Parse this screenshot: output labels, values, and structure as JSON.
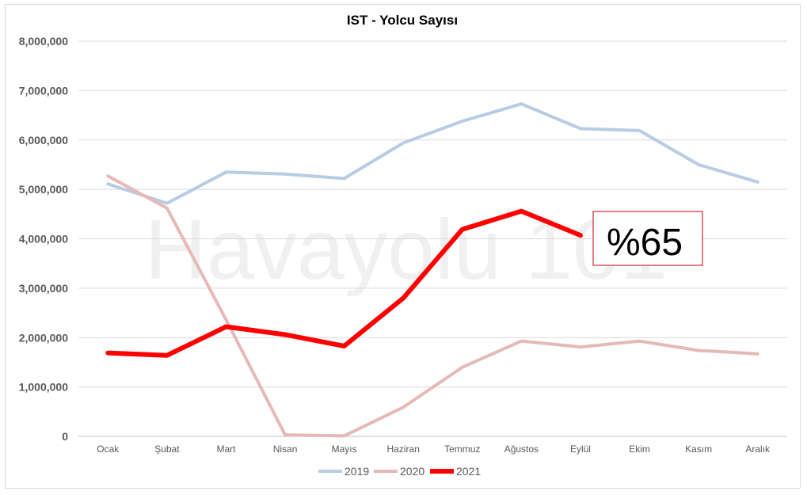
{
  "chart_data": {
    "type": "line",
    "title": "IST - Yolcu Sayısı",
    "categories": [
      "Ocak",
      "Şubat",
      "Mart",
      "Nisan",
      "Mayıs",
      "Haziran",
      "Temmuz",
      "Ağustos",
      "Eylül",
      "Ekim",
      "Kasım",
      "Aralık"
    ],
    "ylim": [
      0,
      8000000
    ],
    "yticks": [
      "0",
      "1,000,000",
      "2,000,000",
      "3,000,000",
      "4,000,000",
      "5,000,000",
      "6,000,000",
      "7,000,000",
      "8,000,000"
    ],
    "grid": true,
    "legend_position": "bottom",
    "series": [
      {
        "name": "2019",
        "color": "#b8cce4",
        "values": [
          5110000,
          4720000,
          5350000,
          5310000,
          5220000,
          5940000,
          6380000,
          6730000,
          6230000,
          6190000,
          5500000,
          5150000
        ]
      },
      {
        "name": "2020",
        "color": "#e6b9b8",
        "values": [
          5270000,
          4620000,
          2360000,
          30000,
          10000,
          590000,
          1400000,
          1930000,
          1810000,
          1930000,
          1740000,
          1670000
        ]
      },
      {
        "name": "2021",
        "color": "#ff0000",
        "values": [
          1690000,
          1640000,
          2220000,
          2060000,
          1830000,
          2800000,
          4190000,
          4560000,
          4070000,
          null,
          null,
          null
        ]
      }
    ],
    "annotation": "%65",
    "watermark": "Havayolu 101"
  }
}
